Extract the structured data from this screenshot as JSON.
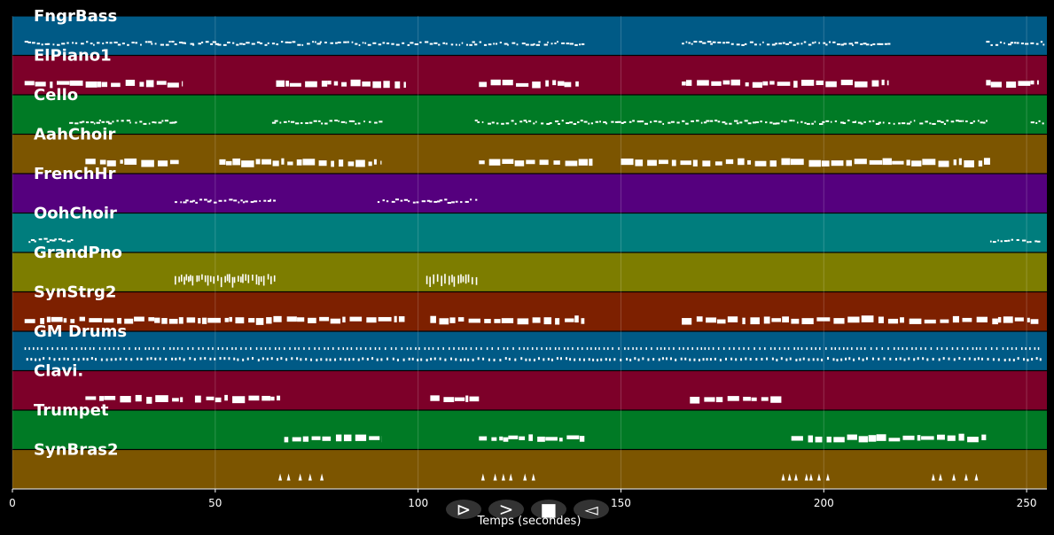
{
  "chart_data": {
    "type": "piano-roll",
    "xlabel": "Temps (secondes)",
    "xlim": [
      0,
      255
    ],
    "xticks": [
      0,
      50,
      100,
      150,
      200,
      250
    ],
    "xgrid": true,
    "tracks": [
      {
        "name": "FngrBass",
        "color": "#005a86",
        "note_style": "dots",
        "segments": [
          [
            3,
            141
          ],
          [
            165,
            216
          ],
          [
            240,
            254
          ]
        ]
      },
      {
        "name": "ElPiano1",
        "color": "#7d0029",
        "note_style": "blocks",
        "segments": [
          [
            3,
            42
          ],
          [
            65,
            97
          ],
          [
            115,
            140
          ],
          [
            165,
            216
          ],
          [
            240,
            253
          ]
        ]
      },
      {
        "name": "Cello",
        "color": "#007a25",
        "note_style": "dots",
        "segments": [
          [
            14,
            40
          ],
          [
            64,
            91
          ],
          [
            114,
            241
          ],
          [
            251,
            254
          ]
        ]
      },
      {
        "name": "AahChoir",
        "color": "#7c5500",
        "note_style": "blocks",
        "segments": [
          [
            18,
            41
          ],
          [
            51,
            91
          ],
          [
            115,
            143
          ],
          [
            150,
            241
          ]
        ]
      },
      {
        "name": "FrenchHr",
        "color": "#55007e",
        "note_style": "dots",
        "segments": [
          [
            40,
            65
          ],
          [
            90,
            115
          ]
        ]
      },
      {
        "name": "OohChoir",
        "color": "#007d7d",
        "note_style": "dots",
        "segments": [
          [
            4,
            15
          ],
          [
            241,
            254
          ]
        ]
      },
      {
        "name": "GrandPno",
        "color": "#7d7d00",
        "note_style": "bars",
        "segments": [
          [
            40,
            65
          ],
          [
            102,
            115
          ]
        ]
      },
      {
        "name": "SynStrg2",
        "color": "#7d2000",
        "note_style": "blocks",
        "segments": [
          [
            3,
            97
          ],
          [
            103,
            141
          ],
          [
            165,
            253
          ]
        ]
      },
      {
        "name": "GM Drums",
        "color": "#005a86",
        "note_style": "drums",
        "segments": [
          [
            3,
            254
          ]
        ]
      },
      {
        "name": "Clavi.",
        "color": "#7d0029",
        "note_style": "blocks",
        "segments": [
          [
            18,
            42
          ],
          [
            45,
            66
          ],
          [
            103,
            115
          ],
          [
            167,
            190
          ]
        ]
      },
      {
        "name": "Trumpet",
        "color": "#007a25",
        "note_style": "blocks",
        "segments": [
          [
            67,
            91
          ],
          [
            115,
            141
          ],
          [
            192,
            240
          ]
        ]
      },
      {
        "name": "SynBras2",
        "color": "#7c5500",
        "note_style": "triangles",
        "segments": [
          [
            66,
            78
          ],
          [
            116,
            129
          ],
          [
            190,
            202
          ],
          [
            227,
            240
          ]
        ]
      }
    ]
  },
  "controls": [
    {
      "name": "play-button",
      "glyph": "⊳"
    },
    {
      "name": "next-button",
      "glyph": ">"
    },
    {
      "name": "stop-button",
      "glyph": "■"
    },
    {
      "name": "previous-button",
      "glyph": "◅"
    }
  ]
}
